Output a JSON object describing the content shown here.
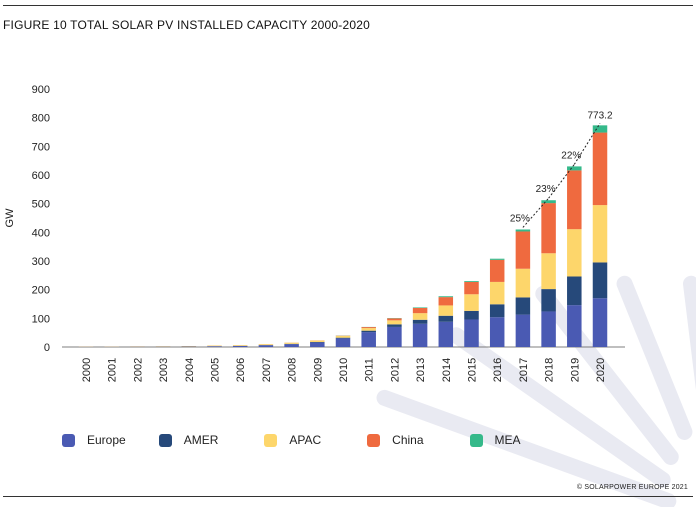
{
  "figure_title": "FIGURE 10 TOTAL SOLAR PV INSTALLED CAPACITY 2000-2020",
  "copyright": "© SOLARPOWER EUROPE 2021",
  "colors": {
    "Europe": "#4a5ab3",
    "AMER": "#26497a",
    "APAC": "#fdd66b",
    "China": "#ef6a3f",
    "MEA": "#35b98a",
    "decor": "#e9eaf2"
  },
  "chart_data": {
    "type": "bar",
    "stacked": true,
    "title": "FIGURE 10 TOTAL SOLAR PV INSTALLED CAPACITY 2000-2020",
    "xlabel": "",
    "ylabel": "GW",
    "ylim": [
      0,
      900
    ],
    "yticks": [
      0,
      100,
      200,
      300,
      400,
      500,
      600,
      700,
      800,
      900
    ],
    "grid": false,
    "legend_position": "bottom",
    "categories": [
      "2000",
      "2001",
      "2002",
      "2003",
      "2004",
      "2005",
      "2006",
      "2007",
      "2008",
      "2009",
      "2010",
      "2011",
      "2012",
      "2013",
      "2014",
      "2015",
      "2016",
      "2017",
      "2018",
      "2019",
      "2020"
    ],
    "series": [
      {
        "name": "Europe",
        "values": [
          0.5,
          0.5,
          1,
          1,
          1.5,
          2.5,
          3.5,
          6,
          10,
          16,
          30,
          52,
          70,
          81,
          88,
          96,
          104,
          113,
          124,
          146,
          170
        ]
      },
      {
        "name": "AMER",
        "values": [
          0.1,
          0.1,
          0.2,
          0.3,
          0.4,
          0.5,
          0.6,
          0.8,
          1,
          1.5,
          2.5,
          5,
          9,
          14,
          21,
          30,
          45,
          60,
          78,
          100,
          125
        ]
      },
      {
        "name": "APAC",
        "values": [
          0.7,
          0.7,
          1,
          1.2,
          1.5,
          2.2,
          2.6,
          3,
          4,
          5,
          6,
          9,
          14,
          23,
          36,
          58,
          78,
          100,
          125,
          165,
          200
        ]
      },
      {
        "name": "China",
        "values": [
          0.1,
          0.1,
          0.1,
          0.1,
          0.1,
          0.1,
          0.1,
          0.2,
          0.3,
          0.5,
          1,
          3.5,
          7,
          18,
          29,
          43,
          77,
          130,
          175,
          205,
          253
        ]
      },
      {
        "name": "MEA",
        "values": [
          0,
          0,
          0,
          0,
          0,
          0,
          0,
          0,
          0,
          0,
          0.5,
          0.5,
          1,
          2,
          3,
          3,
          4,
          7,
          10,
          14,
          25.2
        ]
      }
    ],
    "annotations": [
      {
        "text": "25%",
        "category": "2017"
      },
      {
        "text": "23%",
        "category": "2018"
      },
      {
        "text": "22%",
        "category": "2019"
      },
      {
        "text": "773.2",
        "category": "2020"
      }
    ]
  }
}
